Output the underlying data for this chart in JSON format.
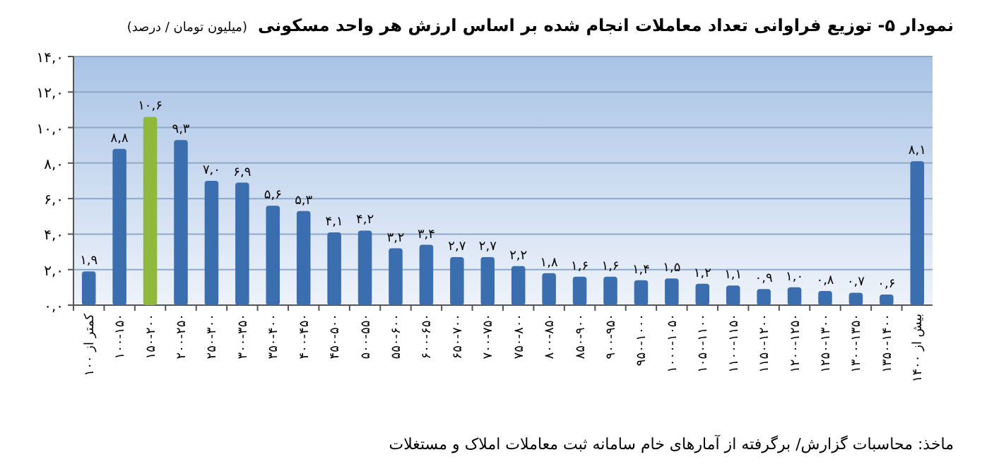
{
  "chart_data": {
    "type": "bar",
    "title": "نمودار ۵- توزیع فراوانی تعداد معاملات انجام شده بر اساس ارزش هر واحد مسکونی",
    "subtitle": "(میلیون تومان / درصد)",
    "annotations": [
      "ماخذ: محاسبات گزارش/ برگرفته از آمارهای خام سامانه ثبت معاملات املاک و مستغلات"
    ],
    "categories": [
      "کمتر از ۱۰۰",
      "۱۰۰-۱۵۰",
      "۱۵۰-۲۰۰",
      "۲۰۰-۲۵۰",
      "۲۵۰-۳۰۰",
      "۳۰۰-۳۵۰",
      "۳۵۰-۴۰۰",
      "۴۰۰-۴۵۰",
      "۴۵۰-۵۰۰",
      "۵۰۰-۵۵۰",
      "۵۵۰-۶۰۰",
      "۶۰۰-۶۵۰",
      "۶۵۰-۷۰۰",
      "۷۰۰-۷۵۰",
      "۷۵۰-۸۰۰",
      "۸۰۰-۸۵۰",
      "۸۵۰-۹۰۰",
      "۹۰۰-۹۵۰",
      "۹۵۰-۱۰۰۰",
      "۱۰۰۰-۱۰۵۰",
      "۱۰۵۰-۱۱۰۰",
      "۱۱۰۰-۱۱۵۰",
      "۱۱۵۰-۱۲۰۰",
      "۱۲۰۰-۱۲۵۰",
      "۱۲۵۰-۱۳۰۰",
      "۱۳۰۰-۱۳۵۰",
      "۱۳۵۰-۱۴۰۰",
      "بیش از ۱۴۰۰"
    ],
    "values": [
      1.9,
      8.8,
      10.6,
      9.3,
      7.0,
      6.9,
      5.6,
      5.3,
      4.1,
      4.2,
      3.2,
      3.4,
      2.7,
      2.7,
      2.2,
      1.8,
      1.6,
      1.6,
      1.4,
      1.5,
      1.2,
      1.1,
      0.9,
      1.0,
      0.8,
      0.7,
      0.6,
      8.1
    ],
    "value_labels": [
      "۱,۹",
      "۸,۸",
      "۱۰,۶",
      "۹,۳",
      "۷,۰",
      "۶,۹",
      "۵,۶",
      "۵,۳",
      "۴,۱",
      "۴,۲",
      "۳,۲",
      "۳,۴",
      "۲,۷",
      "۲,۷",
      "۲,۲",
      "۱,۸",
      "۱,۶",
      "۱,۶",
      "۱,۴",
      "۱,۵",
      "۱,۲",
      "۱,۱",
      "۰,۹",
      "۱,۰",
      "۰,۸",
      "۰,۷",
      "۰,۶",
      "۸,۱"
    ],
    "colors": [
      "#3a6eae",
      "#3a6eae",
      "#8fb83c",
      "#3a6eae",
      "#3a6eae",
      "#3a6eae",
      "#3a6eae",
      "#3a6eae",
      "#3a6eae",
      "#3a6eae",
      "#3a6eae",
      "#3a6eae",
      "#3a6eae",
      "#3a6eae",
      "#3a6eae",
      "#3a6eae",
      "#3a6eae",
      "#3a6eae",
      "#3a6eae",
      "#3a6eae",
      "#3a6eae",
      "#3a6eae",
      "#3a6eae",
      "#3a6eae",
      "#3a6eae",
      "#3a6eae",
      "#3a6eae",
      "#3a6eae"
    ],
    "ylim": [
      0,
      14
    ],
    "yticks": [
      {
        "value": 0,
        "label": "۰,۰"
      },
      {
        "value": 2,
        "label": "۲,۰"
      },
      {
        "value": 4,
        "label": "۴,۰"
      },
      {
        "value": 6,
        "label": "۶,۰"
      },
      {
        "value": 8,
        "label": "۸,۰"
      },
      {
        "value": 10,
        "label": "۱۰,۰"
      },
      {
        "value": 12,
        "label": "۱۲,۰"
      },
      {
        "value": 14,
        "label": "۱۴,۰"
      }
    ],
    "grid": "y"
  }
}
